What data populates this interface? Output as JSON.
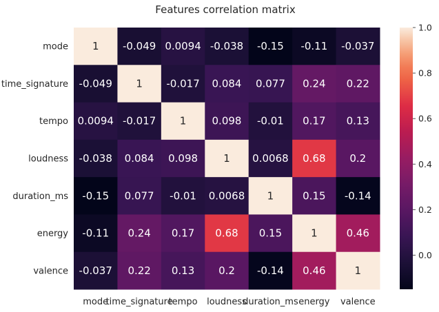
{
  "chart_data": {
    "type": "heatmap",
    "title": "Features correlation matrix",
    "xlabel": "",
    "ylabel": "",
    "rows": [
      "mode",
      "time_signature",
      "tempo",
      "loudness",
      "duration_ms",
      "energy",
      "valence"
    ],
    "columns": [
      "mode",
      "time_signature",
      "tempo",
      "loudness",
      "duration_ms",
      "energy",
      "valence"
    ],
    "values": [
      [
        1,
        -0.049,
        0.0094,
        -0.038,
        -0.15,
        -0.11,
        -0.037
      ],
      [
        -0.049,
        1,
        -0.017,
        0.084,
        0.077,
        0.24,
        0.22
      ],
      [
        0.0094,
        -0.017,
        1,
        0.098,
        -0.01,
        0.17,
        0.13
      ],
      [
        -0.038,
        0.084,
        0.098,
        1,
        0.0068,
        0.68,
        0.2
      ],
      [
        -0.15,
        0.077,
        -0.01,
        0.0068,
        1,
        0.15,
        -0.14
      ],
      [
        -0.11,
        0.24,
        0.17,
        0.68,
        0.15,
        1,
        0.46
      ],
      [
        -0.037,
        0.22,
        0.13,
        0.2,
        -0.14,
        0.46,
        1
      ]
    ],
    "labels": [
      [
        "1",
        "-0.049",
        "0.0094",
        "-0.038",
        "-0.15",
        "-0.11",
        "-0.037"
      ],
      [
        "-0.049",
        "1",
        "-0.017",
        "0.084",
        "0.077",
        "0.24",
        "0.22"
      ],
      [
        "0.0094",
        "-0.017",
        "1",
        "0.098",
        "-0.01",
        "0.17",
        "0.13"
      ],
      [
        "-0.038",
        "0.084",
        "0.098",
        "1",
        "0.0068",
        "0.68",
        "0.2"
      ],
      [
        "-0.15",
        "0.077",
        "-0.01",
        "0.0068",
        "1",
        "0.15",
        "-0.14"
      ],
      [
        "-0.11",
        "0.24",
        "0.17",
        "0.68",
        "0.15",
        "1",
        "0.46"
      ],
      [
        "-0.037",
        "0.22",
        "0.13",
        "0.2",
        "-0.14",
        "0.46",
        "1"
      ]
    ],
    "colormap": "rocket",
    "colorbar": {
      "range": [
        -0.15,
        1.0
      ],
      "ticks": [
        0.0,
        0.2,
        0.4,
        0.6,
        0.8,
        1.0
      ],
      "tick_labels": [
        "0.0",
        "0.2",
        "0.4",
        "0.6",
        "0.8",
        "1.0"
      ]
    },
    "grid": false
  }
}
